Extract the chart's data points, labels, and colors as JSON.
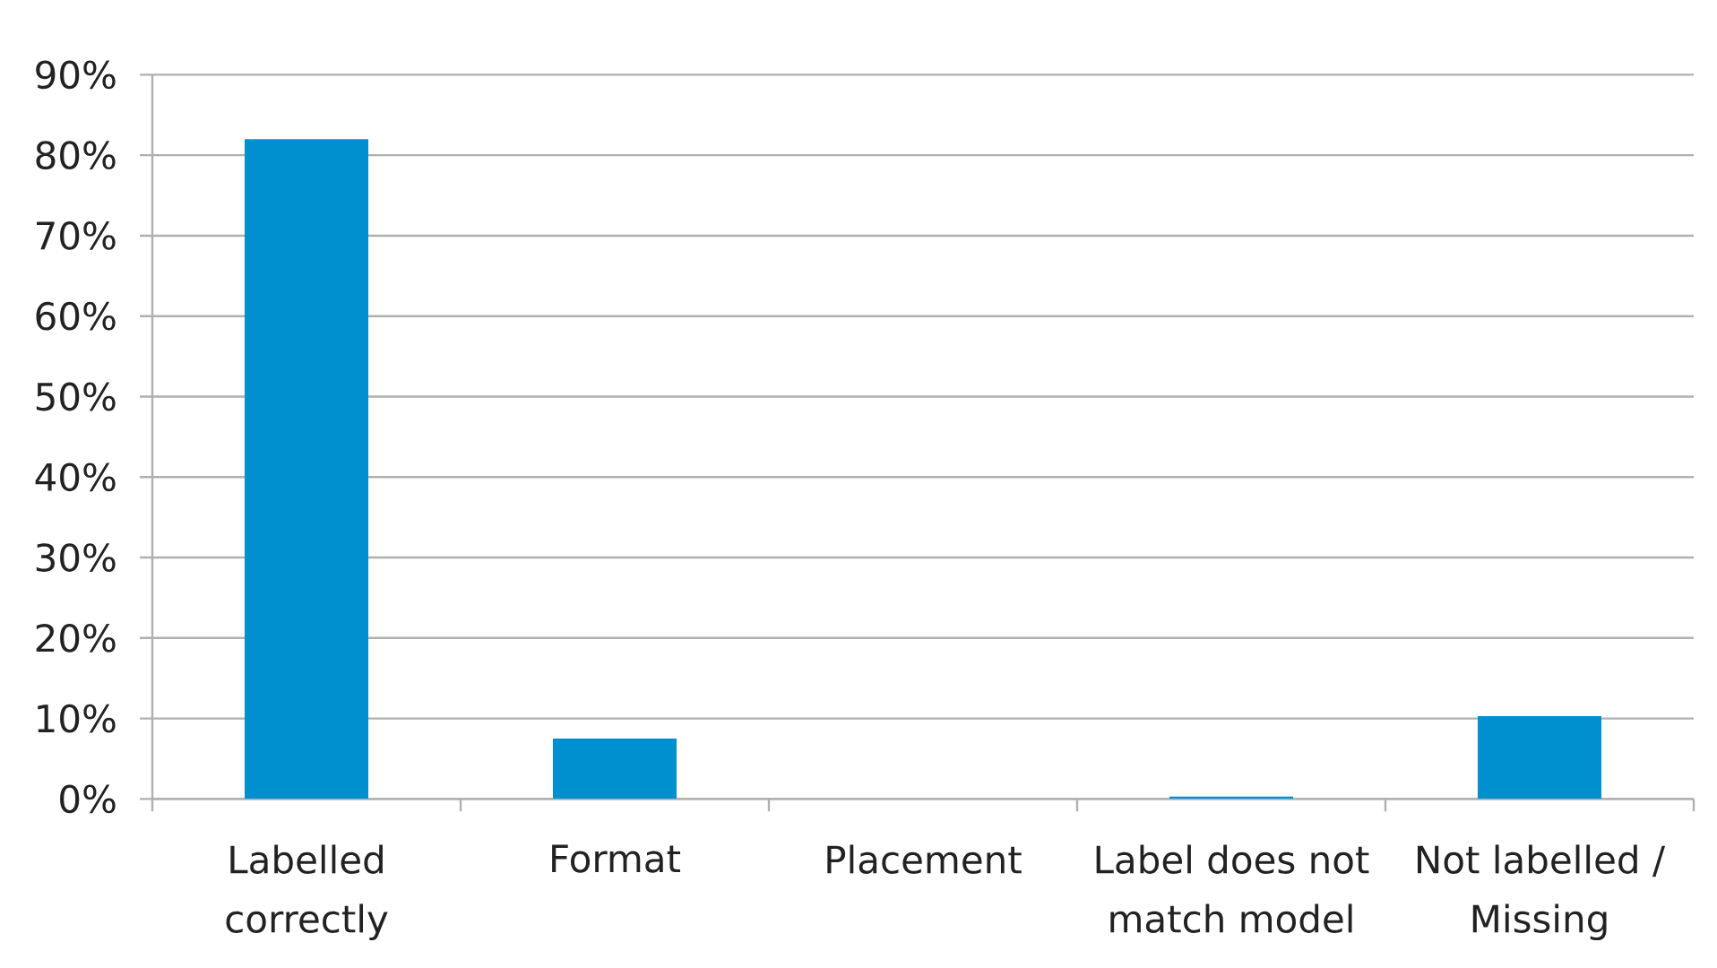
{
  "chart_data": {
    "type": "bar",
    "categories": [
      "Labelled correctly",
      "Format",
      "Placement",
      "Label does not match model",
      "Not labelled / Missing"
    ],
    "values": [
      82,
      7.5,
      0,
      0.3,
      10.3
    ],
    "color": "#0090d0",
    "ylim": [
      0,
      90
    ],
    "yticks": [
      {
        "value": 0,
        "label": "0%"
      },
      {
        "value": 10,
        "label": "10%"
      },
      {
        "value": 20,
        "label": "20%"
      },
      {
        "value": 30,
        "label": "30%"
      },
      {
        "value": 40,
        "label": "40%"
      },
      {
        "value": 50,
        "label": "50%"
      },
      {
        "value": 60,
        "label": "60%"
      },
      {
        "value": 70,
        "label": "70%"
      },
      {
        "value": 80,
        "label": "80%"
      },
      {
        "value": 90,
        "label": "90%"
      }
    ],
    "grid": "y"
  }
}
